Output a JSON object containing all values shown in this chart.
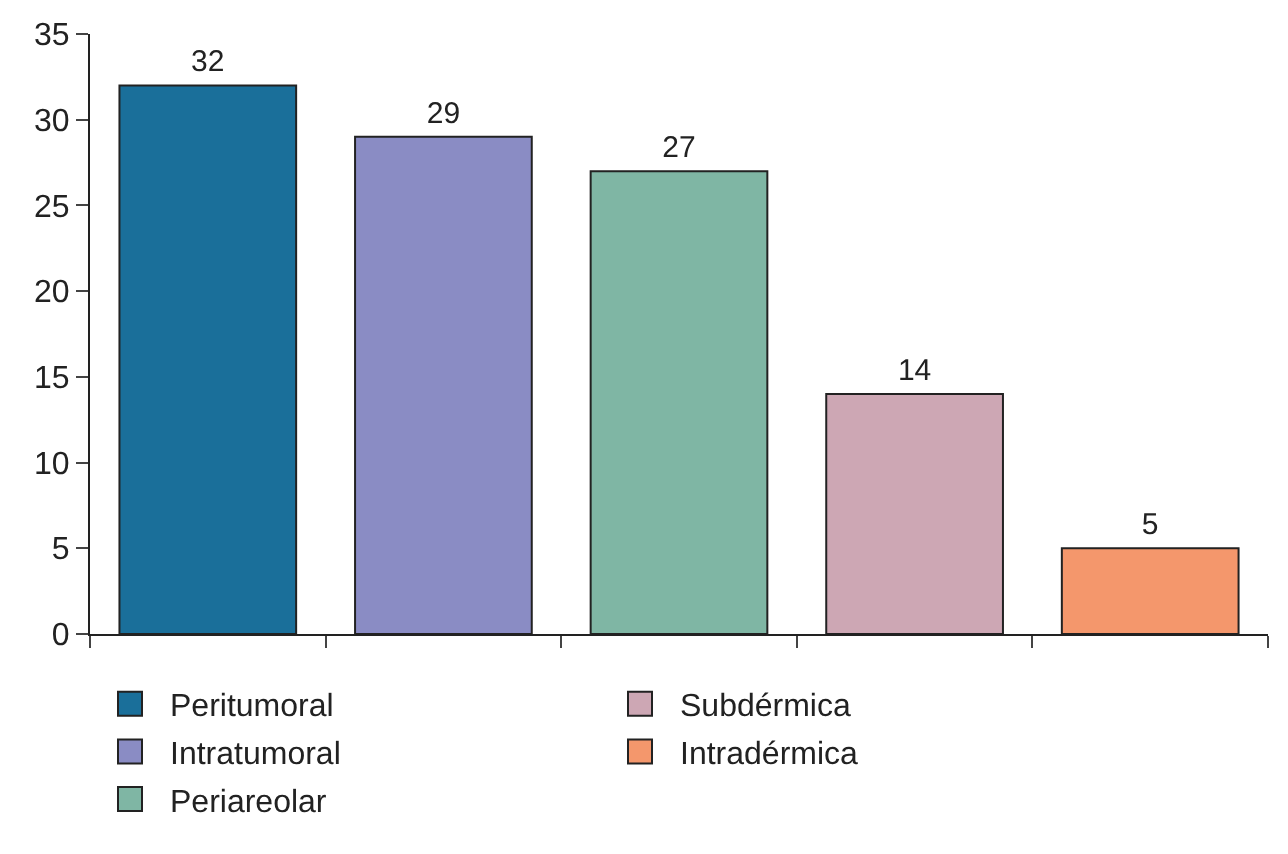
{
  "chart_data": {
    "type": "bar",
    "categories": [
      null,
      null,
      null,
      null,
      null
    ],
    "series": [
      {
        "name": "Peritumoral",
        "color": "#1a6f9a",
        "values": [
          32,
          null,
          null,
          null,
          null
        ]
      },
      {
        "name": "Intratumoral",
        "color": "#8a8cc4",
        "values": [
          null,
          29,
          null,
          null,
          null
        ]
      },
      {
        "name": "Periareolar",
        "color": "#7fb6a4",
        "values": [
          null,
          null,
          27,
          null,
          null
        ]
      },
      {
        "name": "Subdérmica",
        "color": "#cda7b4",
        "values": [
          null,
          null,
          null,
          14,
          null
        ]
      },
      {
        "name": "Intradérmica",
        "color": "#f4976c",
        "values": [
          null,
          null,
          null,
          null,
          5
        ]
      }
    ],
    "ylim": [
      0,
      35
    ],
    "yticks": [
      0,
      5,
      10,
      15,
      20,
      25,
      30,
      35
    ],
    "data_labels": true,
    "legend": "bottom"
  }
}
